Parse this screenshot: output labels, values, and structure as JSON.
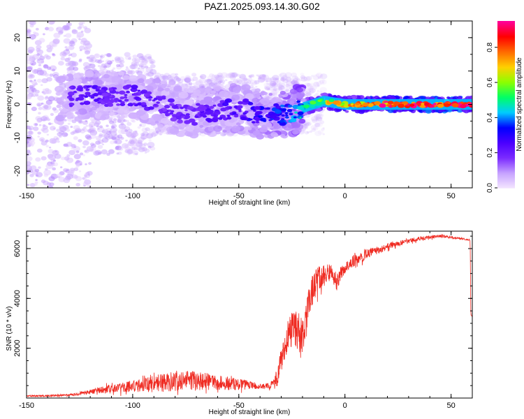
{
  "title": "PAZ1.2025.093.14.30.G02",
  "colors": {
    "snr_line": "#ef2b22",
    "background": "#ffffff",
    "axis": "#000000",
    "colormap": [
      "#f4e6ff",
      "#c7a3ff",
      "#7b2cff",
      "#4b00ff",
      "#0000ff",
      "#00ccff",
      "#00ff66",
      "#8cff00",
      "#ffd000",
      "#ff6a00",
      "#ff0000",
      "#ff0099"
    ]
  },
  "chart_data": [
    {
      "type": "heatmap",
      "title": "PAZ1.2025.093.14.30.G02",
      "xlabel": "Height of straight line (km)",
      "ylabel": "Frequency (Hz)",
      "xlim": [
        -150,
        60
      ],
      "ylim": [
        -25,
        25
      ],
      "x_ticks": [
        -150,
        -100,
        -50,
        0,
        50
      ],
      "y_ticks": [
        20,
        10,
        0,
        -10,
        -20
      ],
      "colorbar": {
        "label": "Normalized spectral amplitude",
        "range": [
          0,
          0.95
        ],
        "ticks": [
          0.0,
          0.2,
          0.4,
          0.6,
          0.8
        ]
      },
      "ridge": {
        "x": [
          -130,
          -120,
          -110,
          -100,
          -90,
          -80,
          -70,
          -60,
          -50,
          -40,
          -30,
          -20,
          -10,
          0,
          10,
          20,
          30,
          40,
          50,
          60
        ],
        "frequency": [
          2,
          3,
          2,
          3,
          1,
          -2,
          -3,
          -2,
          -1,
          -3,
          -3,
          -1,
          1,
          0,
          0,
          0,
          0,
          0,
          0,
          0
        ],
        "amplitude": [
          0.2,
          0.25,
          0.2,
          0.25,
          0.22,
          0.2,
          0.22,
          0.25,
          0.25,
          0.3,
          0.35,
          0.45,
          0.6,
          0.75,
          0.8,
          0.85,
          0.9,
          0.9,
          0.92,
          0.95
        ]
      }
    },
    {
      "type": "line",
      "xlabel": "Height of straight line (km)",
      "ylabel": "SNR (10 * v/v)",
      "xlim": [
        -150,
        60
      ],
      "ylim": [
        0,
        6700
      ],
      "x_ticks": [
        -150,
        -100,
        -50,
        0,
        50
      ],
      "y_ticks": [
        2000,
        4000,
        6000
      ],
      "series": [
        {
          "x": [
            -150,
            -140,
            -130,
            -125,
            -120,
            -115,
            -110,
            -105,
            -100,
            -95,
            -90,
            -85,
            -80,
            -75,
            -70,
            -65,
            -60,
            -55,
            -50,
            -45,
            -40,
            -35,
            -32,
            -30,
            -28,
            -26,
            -24,
            -22,
            -20,
            -18,
            -16,
            -14,
            -12,
            -10,
            -8,
            -6,
            -4,
            -2,
            0,
            2,
            4,
            6,
            8,
            10,
            12,
            14,
            16,
            18,
            20,
            25,
            30,
            35,
            40,
            45,
            50,
            55,
            59,
            59.3,
            60
          ],
          "y": [
            80,
            90,
            120,
            180,
            250,
            320,
            380,
            430,
            480,
            520,
            560,
            620,
            700,
            720,
            690,
            660,
            620,
            580,
            560,
            520,
            470,
            500,
            800,
            1500,
            2200,
            2600,
            2900,
            2700,
            2500,
            3200,
            4200,
            4600,
            4800,
            4900,
            5000,
            5100,
            4600,
            5000,
            5200,
            5400,
            5500,
            5600,
            5650,
            5800,
            5850,
            5900,
            5950,
            6000,
            6100,
            6200,
            6300,
            6400,
            6450,
            6500,
            6450,
            6400,
            6350,
            3300,
            3300
          ],
          "noise": [
            60,
            70,
            80,
            120,
            160,
            220,
            300,
            380,
            420,
            520,
            620,
            700,
            750,
            720,
            680,
            620,
            560,
            500,
            420,
            300,
            180,
            220,
            700,
            900,
            1200,
            1300,
            1400,
            1500,
            1400,
            1300,
            1300,
            1000,
            900,
            800,
            700,
            600,
            700,
            500,
            450,
            420,
            400,
            380,
            360,
            340,
            320,
            300,
            280,
            260,
            240,
            200,
            170,
            150,
            120,
            100,
            90,
            80,
            60,
            40,
            40
          ]
        }
      ]
    }
  ]
}
